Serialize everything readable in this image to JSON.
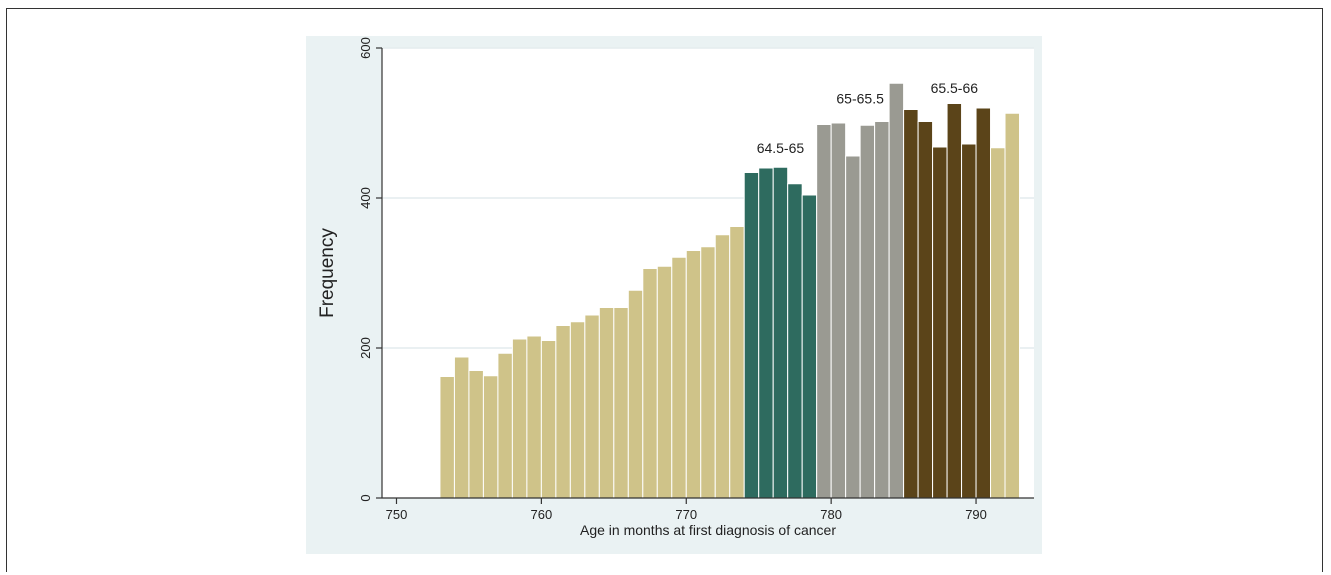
{
  "chart_data": {
    "type": "bar",
    "xlabel": "Age in months at first diagnosis of cancer",
    "ylabel": "Frequency",
    "xlim": [
      749,
      794
    ],
    "ylim": [
      0,
      600
    ],
    "xticks": [
      750,
      760,
      770,
      780,
      790
    ],
    "yticks": [
      0,
      200,
      400,
      600
    ],
    "grid": true,
    "colors": {
      "other": "#cfc389",
      "age_64_5_65": "#2e6b5f",
      "age_65_65_5": "#9a9a92",
      "age_65_5_66": "#5b4419",
      "bar_edge": "#ffffff",
      "plot_bg": "#ffffff",
      "outer_bg": "#eaf2f3",
      "gridline": "#e4ecee",
      "axis": "#333333"
    },
    "bars": [
      {
        "x": 754,
        "value": 162,
        "group": "other"
      },
      {
        "x": 755,
        "value": 188,
        "group": "other"
      },
      {
        "x": 756,
        "value": 170,
        "group": "other"
      },
      {
        "x": 757,
        "value": 163,
        "group": "other"
      },
      {
        "x": 758,
        "value": 193,
        "group": "other"
      },
      {
        "x": 759,
        "value": 212,
        "group": "other"
      },
      {
        "x": 760,
        "value": 216,
        "group": "other"
      },
      {
        "x": 761,
        "value": 210,
        "group": "other"
      },
      {
        "x": 762,
        "value": 230,
        "group": "other"
      },
      {
        "x": 763,
        "value": 235,
        "group": "other"
      },
      {
        "x": 764,
        "value": 244,
        "group": "other"
      },
      {
        "x": 765,
        "value": 254,
        "group": "other"
      },
      {
        "x": 766,
        "value": 254,
        "group": "other"
      },
      {
        "x": 767,
        "value": 277,
        "group": "other"
      },
      {
        "x": 768,
        "value": 306,
        "group": "other"
      },
      {
        "x": 769,
        "value": 309,
        "group": "other"
      },
      {
        "x": 770,
        "value": 321,
        "group": "other"
      },
      {
        "x": 771,
        "value": 330,
        "group": "other"
      },
      {
        "x": 772,
        "value": 335,
        "group": "other"
      },
      {
        "x": 773,
        "value": 351,
        "group": "other"
      },
      {
        "x": 774,
        "value": 362,
        "group": "other"
      },
      {
        "x": 775,
        "value": 434,
        "group": "age_64_5_65"
      },
      {
        "x": 776,
        "value": 440,
        "group": "age_64_5_65"
      },
      {
        "x": 777,
        "value": 441,
        "group": "age_64_5_65"
      },
      {
        "x": 778,
        "value": 419,
        "group": "age_64_5_65"
      },
      {
        "x": 779,
        "value": 404,
        "group": "age_64_5_65"
      },
      {
        "x": 780,
        "value": 498,
        "group": "age_65_65_5"
      },
      {
        "x": 781,
        "value": 500,
        "group": "age_65_65_5"
      },
      {
        "x": 782,
        "value": 456,
        "group": "age_65_65_5"
      },
      {
        "x": 783,
        "value": 497,
        "group": "age_65_65_5"
      },
      {
        "x": 784,
        "value": 502,
        "group": "age_65_65_5"
      },
      {
        "x": 785,
        "value": 553,
        "group": "age_65_65_5"
      },
      {
        "x": 786,
        "value": 518,
        "group": "age_65_5_66"
      },
      {
        "x": 787,
        "value": 502,
        "group": "age_65_5_66"
      },
      {
        "x": 788,
        "value": 468,
        "group": "age_65_5_66"
      },
      {
        "x": 789,
        "value": 526,
        "group": "age_65_5_66"
      },
      {
        "x": 790,
        "value": 472,
        "group": "age_65_5_66"
      },
      {
        "x": 791,
        "value": 520,
        "group": "age_65_5_66"
      },
      {
        "x": 792,
        "value": 467,
        "group": "other"
      },
      {
        "x": 793,
        "value": 513,
        "group": "other"
      }
    ],
    "annotations": [
      {
        "text": "64.5-65",
        "x": 776.5,
        "y": 460
      },
      {
        "text": "65-65.5",
        "x": 782.0,
        "y": 526
      },
      {
        "text": "65.5-66",
        "x": 788.5,
        "y": 540
      }
    ]
  }
}
